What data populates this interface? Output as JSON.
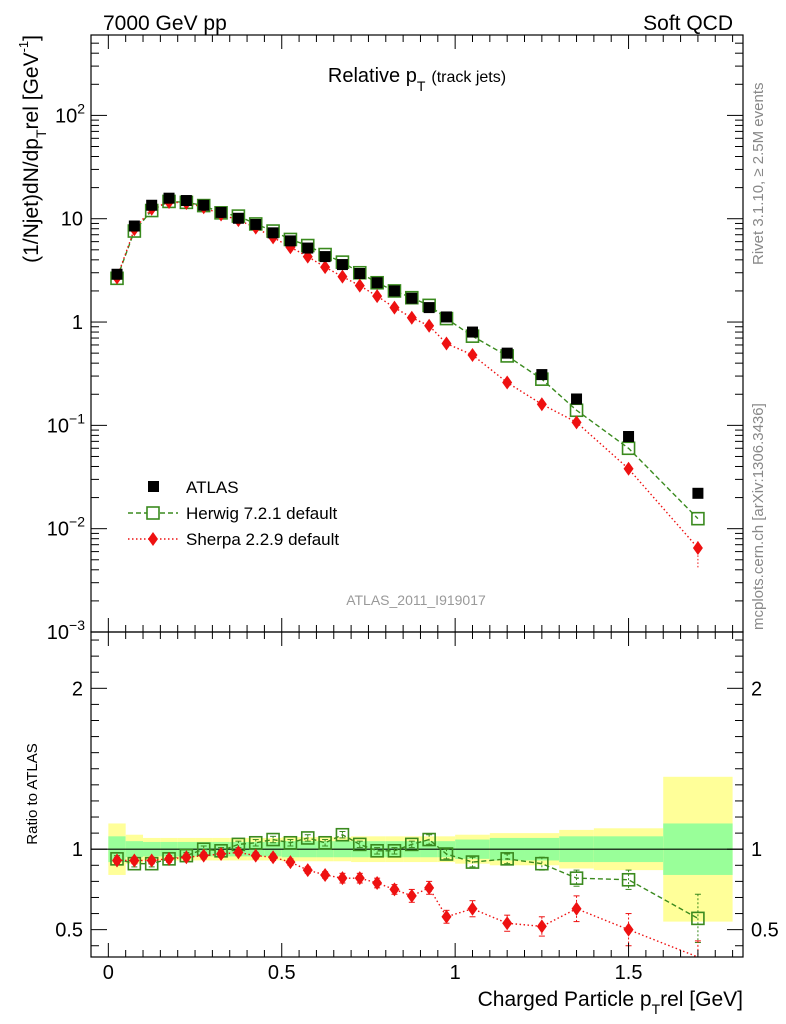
{
  "header": {
    "left": "7000 GeV pp",
    "right": "Soft QCD"
  },
  "side_text": {
    "rivet": "Rivet 3.1.10, ≥ 2.5M events",
    "mcplots": "mcplots.cern.ch [arXiv:1306.3436]"
  },
  "chart_data": [
    {
      "type": "scatter",
      "title": "Relative p",
      "title_sub": "T",
      "title_suffix": "(track jets)",
      "analysis_id": "ATLAS_2011_I919017",
      "ylabel": "(1/Njet)dN/dp",
      "ylabel_sub": "T",
      "ylabel_mid": "rel [GeV",
      "ylabel_sup": "-1",
      "ylabel_end": "]",
      "yscale": "log",
      "xlim": [
        -0.05,
        1.83
      ],
      "ylim": [
        0.001,
        600
      ],
      "yticks": [
        {
          "value": 0.001,
          "base": "10",
          "exp": "−3"
        },
        {
          "value": 0.01,
          "base": "10",
          "exp": "−2"
        },
        {
          "value": 0.1,
          "base": "10",
          "exp": "−1"
        },
        {
          "value": 1,
          "base": "1",
          "exp": ""
        },
        {
          "value": 10,
          "base": "10",
          "exp": ""
        },
        {
          "value": 100,
          "base": "10",
          "exp": "2"
        }
      ],
      "legend_position": "bottom-left",
      "x": [
        0.025,
        0.075,
        0.125,
        0.175,
        0.225,
        0.275,
        0.325,
        0.375,
        0.425,
        0.475,
        0.525,
        0.575,
        0.625,
        0.675,
        0.725,
        0.775,
        0.825,
        0.875,
        0.925,
        0.975,
        1.05,
        1.15,
        1.25,
        1.35,
        1.5,
        1.7
      ],
      "series": [
        {
          "name": "ATLAS",
          "color": "#000000",
          "marker": "square-filled",
          "values": [
            2.9,
            8.5,
            13.5,
            15.8,
            15.0,
            13.5,
            11.5,
            10.1,
            8.8,
            7.3,
            6.1,
            5.2,
            4.3,
            3.6,
            2.95,
            2.4,
            2.0,
            1.7,
            1.38,
            1.12,
            0.8,
            0.5,
            0.31,
            0.18,
            0.078,
            0.022
          ]
        },
        {
          "name": "Herwig 7.2.1 default",
          "color": "#3a8a1e",
          "marker": "square-open",
          "line": "dashed",
          "values": [
            2.65,
            7.6,
            12.0,
            14.7,
            14.4,
            13.4,
            11.4,
            10.6,
            8.9,
            7.6,
            6.3,
            5.5,
            4.5,
            3.8,
            3.0,
            2.4,
            2.0,
            1.72,
            1.45,
            1.08,
            0.73,
            0.47,
            0.28,
            0.14,
            0.06,
            0.0125
          ]
        },
        {
          "name": "Sherpa 2.2.9 default",
          "color": "#ee1111",
          "marker": "diamond-filled",
          "line": "dotted",
          "values": [
            2.7,
            7.9,
            12.5,
            14.5,
            14.2,
            12.9,
            11.0,
            9.7,
            8.2,
            6.6,
            5.3,
            4.3,
            3.4,
            2.75,
            2.25,
            1.78,
            1.38,
            1.1,
            0.92,
            0.62,
            0.48,
            0.26,
            0.16,
            0.107,
            0.038,
            0.0065
          ]
        }
      ]
    },
    {
      "type": "scatter",
      "ylabel": "Ratio to ATLAS",
      "xlabel": "Charged Particle p",
      "xlabel_sub": "T",
      "xlabel_suffix": "rel [GeV]",
      "xlim": [
        -0.05,
        1.83
      ],
      "ylim": [
        0.33,
        2.35
      ],
      "xticks": [
        0,
        0.5,
        1,
        1.5
      ],
      "xtick_labels": [
        "0",
        "0.5",
        "1",
        "1.5"
      ],
      "yticks": [
        0.5,
        1,
        2
      ],
      "ytick_labels": [
        "0.5",
        "1",
        "2"
      ],
      "reference_line": 1,
      "band_edges": [
        0.0,
        0.05,
        0.1,
        0.15,
        0.2,
        0.25,
        0.3,
        0.35,
        0.4,
        0.45,
        0.5,
        0.55,
        0.6,
        0.65,
        0.7,
        0.75,
        0.8,
        0.85,
        0.9,
        0.95,
        1.0,
        1.1,
        1.2,
        1.3,
        1.4,
        1.6,
        1.8
      ],
      "band_inner": [
        0.08,
        0.05,
        0.045,
        0.045,
        0.045,
        0.045,
        0.045,
        0.045,
        0.045,
        0.045,
        0.05,
        0.05,
        0.05,
        0.05,
        0.05,
        0.05,
        0.05,
        0.05,
        0.05,
        0.05,
        0.06,
        0.07,
        0.07,
        0.08,
        0.08,
        0.16
      ],
      "band_outer": [
        0.16,
        0.09,
        0.07,
        0.07,
        0.07,
        0.07,
        0.07,
        0.07,
        0.07,
        0.07,
        0.075,
        0.075,
        0.075,
        0.075,
        0.08,
        0.08,
        0.08,
        0.08,
        0.08,
        0.08,
        0.09,
        0.1,
        0.1,
        0.12,
        0.13,
        0.45
      ],
      "band_colors": {
        "inner": "#99ff99",
        "outer": "#ffff99"
      },
      "x": [
        0.025,
        0.075,
        0.125,
        0.175,
        0.225,
        0.275,
        0.325,
        0.375,
        0.425,
        0.475,
        0.525,
        0.575,
        0.625,
        0.675,
        0.725,
        0.775,
        0.825,
        0.875,
        0.925,
        0.975,
        1.05,
        1.15,
        1.25,
        1.35,
        1.5,
        1.7
      ],
      "series": [
        {
          "name": "Herwig 7.2.1 default",
          "color": "#3a8a1e",
          "marker": "square-open",
          "line": "dashed",
          "values": [
            0.94,
            0.91,
            0.91,
            0.94,
            0.96,
            1.0,
            0.99,
            1.03,
            1.04,
            1.06,
            1.04,
            1.07,
            1.04,
            1.09,
            1.03,
            0.99,
            0.99,
            1.03,
            1.06,
            0.97,
            0.92,
            0.94,
            0.91,
            0.82,
            0.81,
            0.57
          ],
          "errors": [
            0.02,
            0.02,
            0.02,
            0.02,
            0.02,
            0.02,
            0.02,
            0.02,
            0.02,
            0.02,
            0.02,
            0.02,
            0.02,
            0.02,
            0.02,
            0.02,
            0.02,
            0.02,
            0.03,
            0.03,
            0.03,
            0.03,
            0.04,
            0.05,
            0.06,
            0.15
          ]
        },
        {
          "name": "Sherpa 2.2.9 default",
          "color": "#ee1111",
          "marker": "diamond-filled",
          "line": "dotted",
          "values": [
            0.93,
            0.93,
            0.93,
            0.94,
            0.95,
            0.96,
            0.97,
            0.98,
            0.96,
            0.95,
            0.92,
            0.87,
            0.84,
            0.82,
            0.82,
            0.79,
            0.75,
            0.71,
            0.76,
            0.58,
            0.63,
            0.54,
            0.52,
            0.63,
            0.5,
            0.28
          ],
          "errors": [
            0.02,
            0.02,
            0.02,
            0.02,
            0.02,
            0.02,
            0.02,
            0.02,
            0.02,
            0.02,
            0.02,
            0.02,
            0.02,
            0.03,
            0.03,
            0.03,
            0.03,
            0.04,
            0.04,
            0.04,
            0.05,
            0.05,
            0.06,
            0.08,
            0.1,
            0.15
          ]
        }
      ]
    }
  ]
}
